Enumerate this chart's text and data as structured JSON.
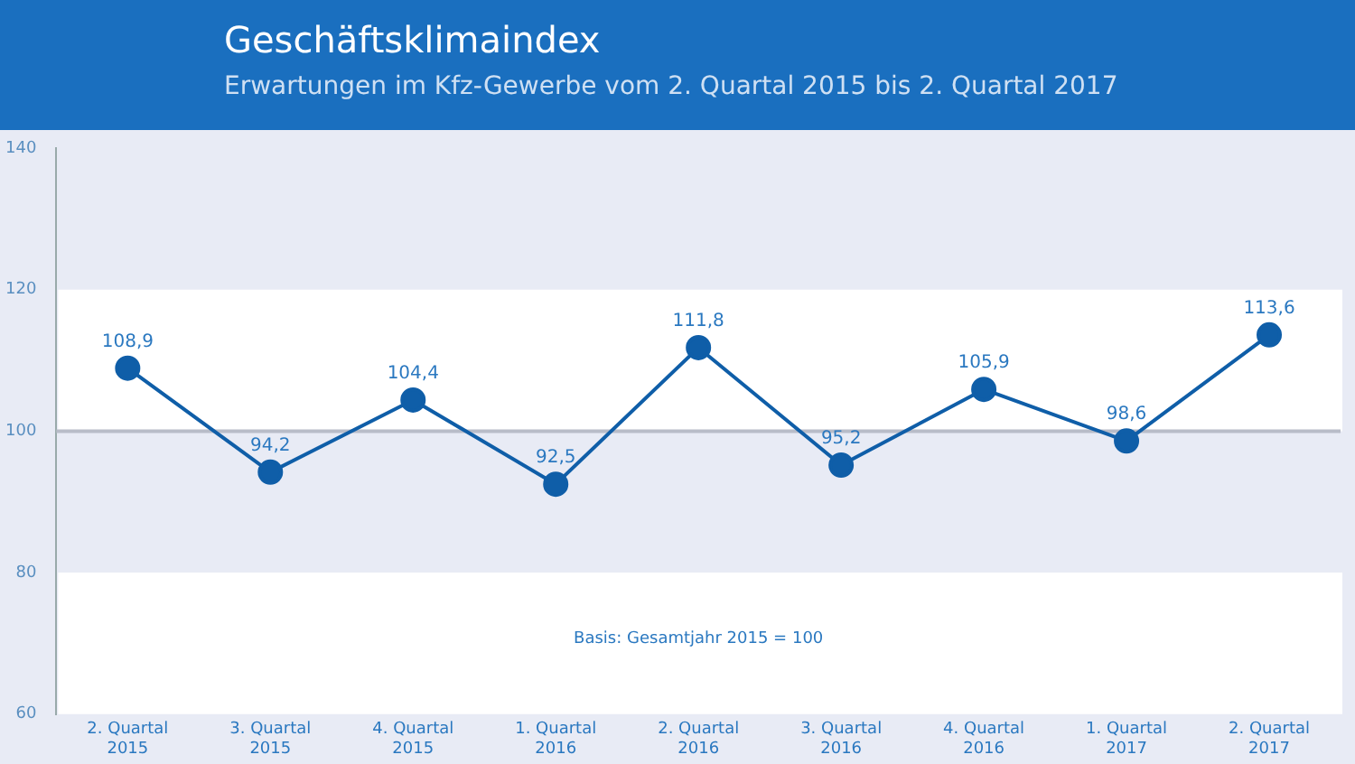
{
  "chart_data": {
    "type": "line",
    "title": "Geschäftsklimaindex",
    "subtitle": "Erwartungen im Kfz-Gewerbe vom 2. Quartal 2015 bis 2. Quartal 2017",
    "categories": [
      "2. Quartal\n2015",
      "3. Quartal\n2015",
      "4. Quartal\n2015",
      "1. Quartal\n2016",
      "2. Quartal\n2016",
      "3. Quartal\n2016",
      "4. Quartal\n2016",
      "1. Quartal\n2017",
      "2. Quartal\n2017"
    ],
    "series": [
      {
        "color": "#0f5ea8",
        "values": [
          108.9,
          94.2,
          104.4,
          92.5,
          111.8,
          95.2,
          105.9,
          98.6,
          113.6
        ],
        "value_labels": [
          "108,9",
          "94,2",
          "104,4",
          "92,5",
          "111,8",
          "95,2",
          "105,9",
          "98,6",
          "113,6"
        ]
      }
    ],
    "ylim": [
      60,
      140
    ],
    "yticks": [
      60,
      80,
      100,
      120,
      140
    ],
    "ref_lines": [
      {
        "axis": "y",
        "value": 100,
        "color": "#b8bcc8"
      }
    ],
    "bands": [
      {
        "axis": "y",
        "from": 60,
        "to": 80,
        "color": "#ffffff"
      },
      {
        "axis": "y",
        "from": 100,
        "to": 120,
        "color": "#ffffff"
      }
    ],
    "annotations": [
      "Basis: Gesamtjahr 2015 = 100"
    ],
    "marker": "circle",
    "line_style": "solid",
    "grid": false,
    "legend": false
  }
}
